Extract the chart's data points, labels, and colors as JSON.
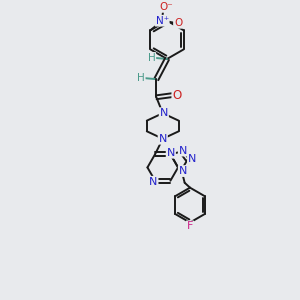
{
  "bg_color": "#e8eaed",
  "bond_color": "#1a1a1a",
  "N_color": "#2222cc",
  "O_color": "#cc2222",
  "F_color": "#cc2288",
  "H_color": "#4a9a8a",
  "figsize": [
    3.0,
    3.0
  ],
  "dpi": 100,
  "xlim": [
    0,
    10
  ],
  "ylim": [
    0,
    14
  ],
  "lw": 1.4,
  "fs": 7.5
}
